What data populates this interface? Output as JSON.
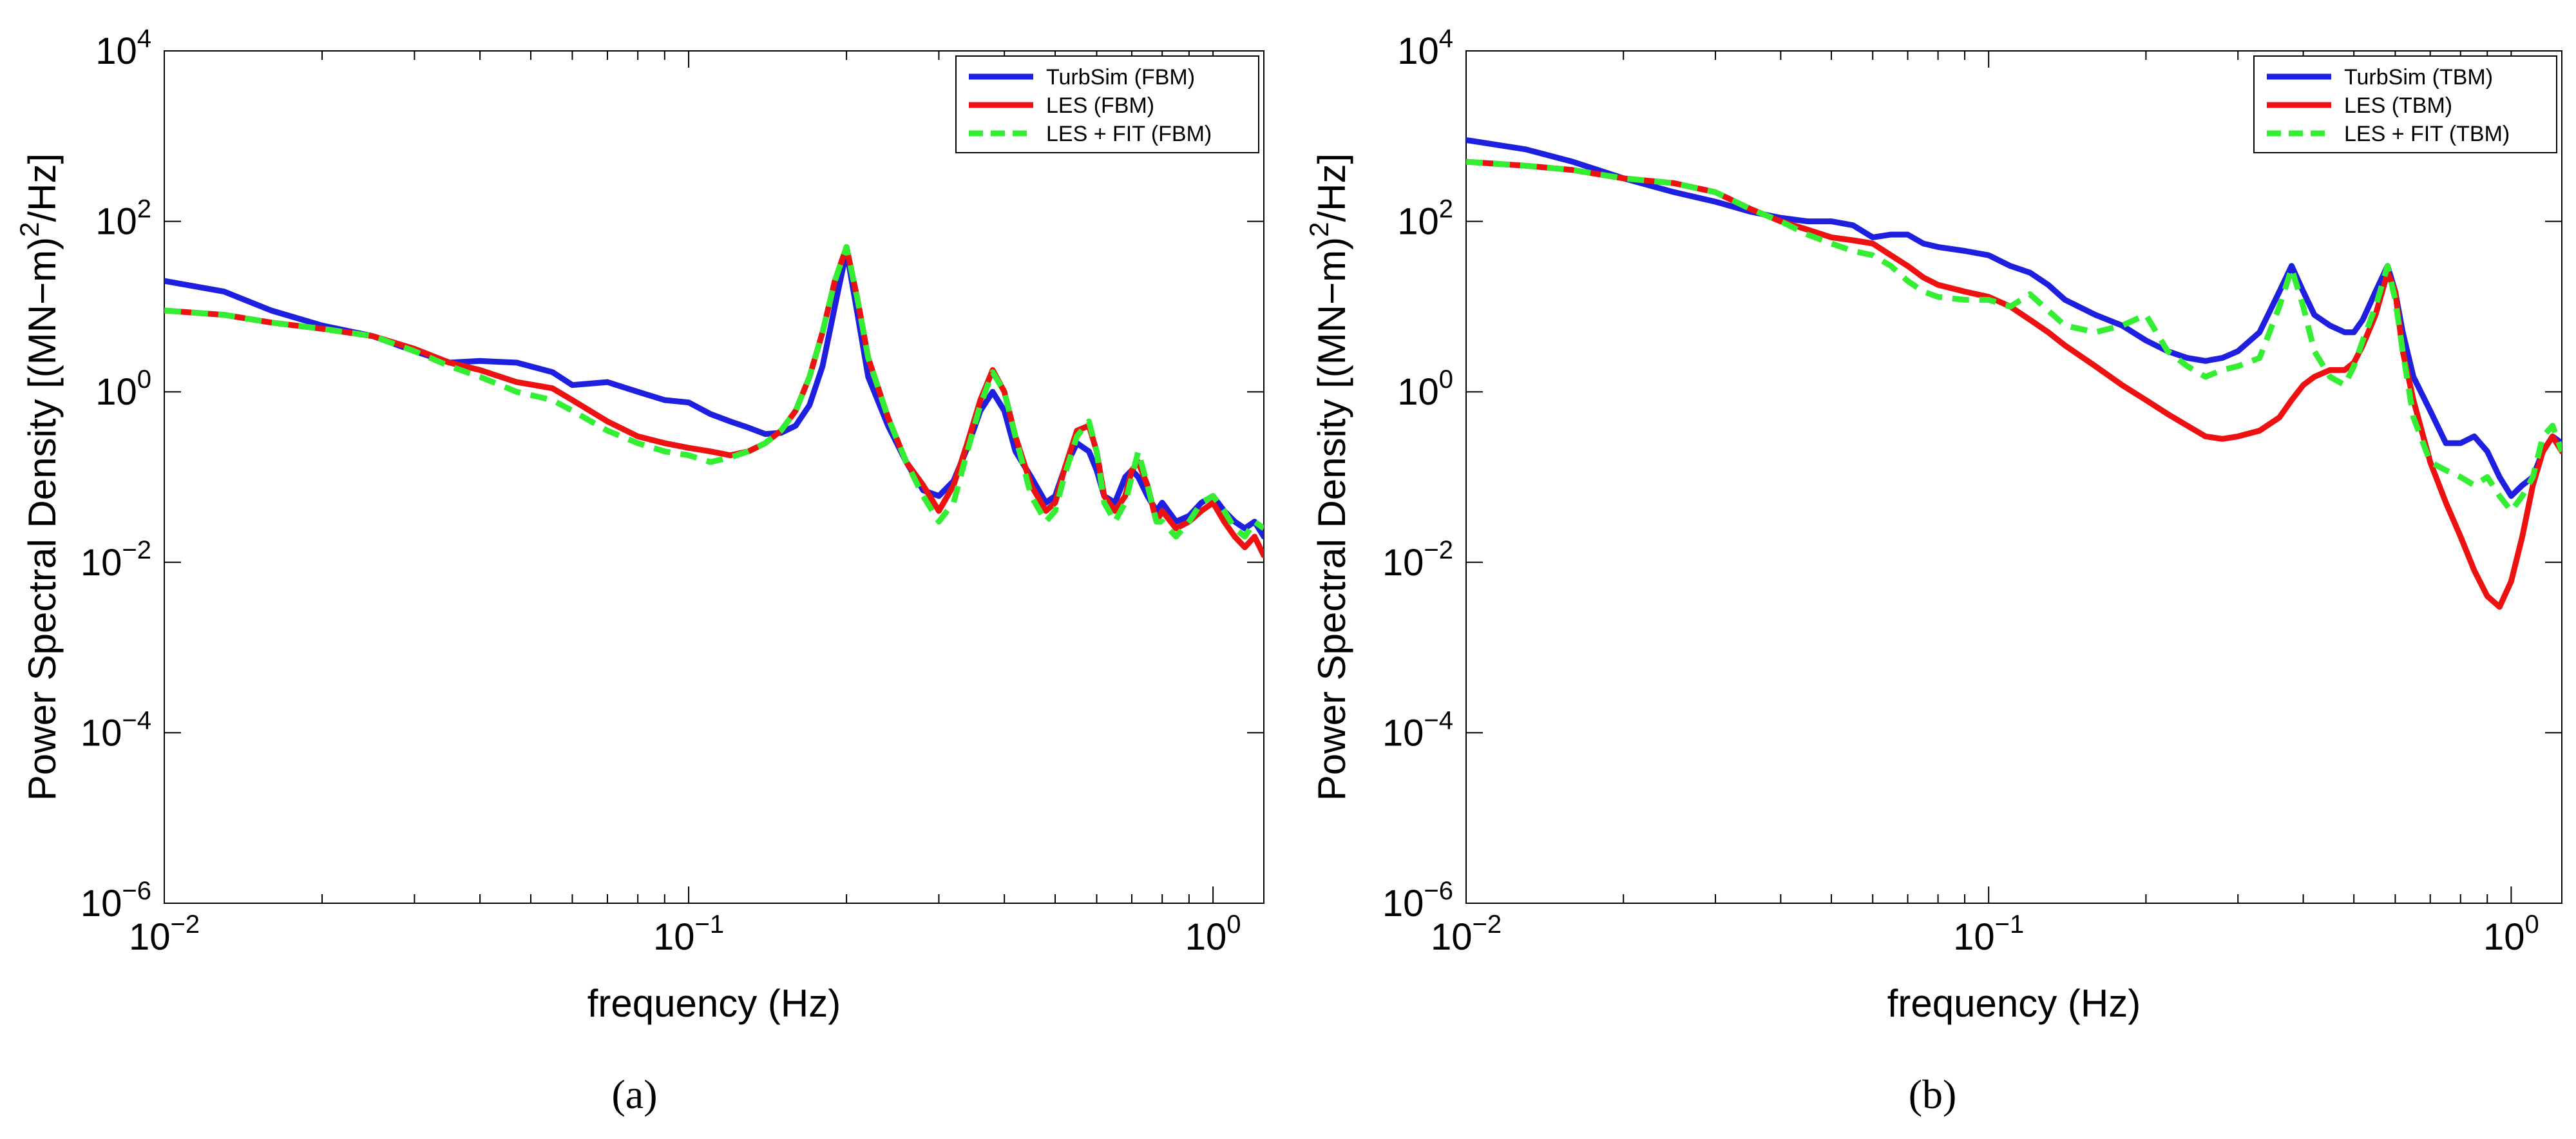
{
  "chart_data": [
    {
      "type": "line",
      "panel": "a",
      "caption": "(a)",
      "xlabel": "frequency (Hz)",
      "ylabel_main": "Power Spectral Density [(MN−m)",
      "ylabel_sup": "2",
      "ylabel_tail": "/Hz]",
      "x_scale": "log",
      "y_scale": "log",
      "xlim": [
        0.01,
        1.25
      ],
      "ylim": [
        1e-06,
        10000.0
      ],
      "x_ticks": [
        {
          "base": "10",
          "exp": "−2",
          "value": 0.01
        },
        {
          "base": "10",
          "exp": "−1",
          "value": 0.1
        },
        {
          "base": "10",
          "exp": "0",
          "value": 1
        }
      ],
      "y_ticks": [
        {
          "base": "10",
          "exp": "−6",
          "value": 1e-06
        },
        {
          "base": "10",
          "exp": "−4",
          "value": 0.0001
        },
        {
          "base": "10",
          "exp": "−2",
          "value": 0.01
        },
        {
          "base": "10",
          "exp": "0",
          "value": 1
        },
        {
          "base": "10",
          "exp": "2",
          "value": 100
        },
        {
          "base": "10",
          "exp": "4",
          "value": 10000
        }
      ],
      "legend_position": "top-right",
      "series": [
        {
          "name": "TurbSim (FBM)",
          "color": "#1f1fe0",
          "dash": "solid",
          "x": [
            0.01,
            0.013,
            0.016,
            0.02,
            0.025,
            0.03,
            0.035,
            0.04,
            0.047,
            0.055,
            0.06,
            0.07,
            0.08,
            0.09,
            0.1,
            0.11,
            0.12,
            0.13,
            0.14,
            0.15,
            0.16,
            0.17,
            0.18,
            0.19,
            0.2,
            0.21,
            0.22,
            0.24,
            0.26,
            0.28,
            0.3,
            0.32,
            0.34,
            0.36,
            0.38,
            0.4,
            0.42,
            0.45,
            0.48,
            0.5,
            0.52,
            0.55,
            0.58,
            0.6,
            0.62,
            0.65,
            0.68,
            0.7,
            0.72,
            0.75,
            0.78,
            0.8,
            0.85,
            0.9,
            0.95,
            1.0,
            1.05,
            1.1,
            1.15,
            1.2,
            1.25
          ],
          "y": [
            20,
            15,
            9,
            6,
            4.5,
            3,
            2.2,
            2.3,
            2.2,
            1.7,
            1.2,
            1.3,
            1.0,
            0.8,
            0.75,
            0.55,
            0.45,
            0.38,
            0.32,
            0.33,
            0.4,
            0.7,
            2.0,
            10,
            45,
            8,
            1.5,
            0.4,
            0.15,
            0.07,
            0.06,
            0.09,
            0.22,
            0.6,
            1.0,
            0.6,
            0.2,
            0.1,
            0.05,
            0.06,
            0.12,
            0.25,
            0.2,
            0.12,
            0.06,
            0.05,
            0.1,
            0.12,
            0.1,
            0.06,
            0.04,
            0.05,
            0.03,
            0.035,
            0.05,
            0.06,
            0.04,
            0.03,
            0.025,
            0.03,
            0.02
          ]
        },
        {
          "name": "LES (FBM)",
          "color": "#ee1111",
          "dash": "solid",
          "x": [
            0.01,
            0.013,
            0.016,
            0.02,
            0.025,
            0.03,
            0.035,
            0.04,
            0.047,
            0.055,
            0.06,
            0.07,
            0.08,
            0.09,
            0.1,
            0.11,
            0.12,
            0.13,
            0.14,
            0.15,
            0.16,
            0.17,
            0.18,
            0.19,
            0.2,
            0.21,
            0.22,
            0.24,
            0.26,
            0.28,
            0.3,
            0.32,
            0.34,
            0.36,
            0.38,
            0.4,
            0.42,
            0.45,
            0.48,
            0.5,
            0.52,
            0.55,
            0.58,
            0.6,
            0.62,
            0.65,
            0.68,
            0.7,
            0.72,
            0.75,
            0.78,
            0.8,
            0.85,
            0.9,
            0.95,
            1.0,
            1.05,
            1.1,
            1.15,
            1.2,
            1.25
          ],
          "y": [
            9,
            8,
            6.5,
            5.5,
            4.5,
            3.2,
            2.2,
            1.8,
            1.3,
            1.1,
            0.8,
            0.45,
            0.3,
            0.25,
            0.22,
            0.2,
            0.18,
            0.2,
            0.25,
            0.35,
            0.6,
            1.5,
            5,
            20,
            50,
            12,
            2.5,
            0.5,
            0.15,
            0.08,
            0.04,
            0.08,
            0.25,
            0.8,
            1.8,
            1.0,
            0.3,
            0.08,
            0.04,
            0.05,
            0.12,
            0.35,
            0.4,
            0.2,
            0.06,
            0.04,
            0.06,
            0.12,
            0.15,
            0.08,
            0.03,
            0.04,
            0.025,
            0.03,
            0.04,
            0.05,
            0.03,
            0.02,
            0.015,
            0.02,
            0.012
          ]
        },
        {
          "name": "LES + FIT (FBM)",
          "color": "#33ee33",
          "dash": "dashed",
          "x": [
            0.01,
            0.013,
            0.016,
            0.02,
            0.025,
            0.03,
            0.035,
            0.04,
            0.047,
            0.055,
            0.06,
            0.07,
            0.08,
            0.09,
            0.1,
            0.11,
            0.12,
            0.13,
            0.14,
            0.15,
            0.16,
            0.17,
            0.18,
            0.19,
            0.2,
            0.21,
            0.22,
            0.24,
            0.26,
            0.28,
            0.3,
            0.32,
            0.34,
            0.36,
            0.38,
            0.4,
            0.42,
            0.45,
            0.48,
            0.5,
            0.52,
            0.55,
            0.58,
            0.6,
            0.62,
            0.65,
            0.68,
            0.7,
            0.72,
            0.75,
            0.78,
            0.8,
            0.85,
            0.9,
            0.95,
            1.0,
            1.05,
            1.1,
            1.15,
            1.2,
            1.25
          ],
          "y": [
            9,
            8,
            6.5,
            5.5,
            4.5,
            3.0,
            2.0,
            1.5,
            1.0,
            0.8,
            0.6,
            0.35,
            0.25,
            0.2,
            0.18,
            0.15,
            0.17,
            0.2,
            0.25,
            0.35,
            0.6,
            1.5,
            5,
            20,
            50,
            12,
            2.5,
            0.5,
            0.15,
            0.06,
            0.03,
            0.05,
            0.2,
            0.7,
            1.7,
            1.0,
            0.3,
            0.06,
            0.03,
            0.04,
            0.1,
            0.3,
            0.45,
            0.2,
            0.05,
            0.03,
            0.05,
            0.1,
            0.2,
            0.08,
            0.03,
            0.03,
            0.02,
            0.03,
            0.05,
            0.06,
            0.04,
            0.025,
            0.02,
            0.03,
            0.025
          ]
        }
      ]
    },
    {
      "type": "line",
      "panel": "b",
      "caption": "(b)",
      "xlabel": "frequency (Hz)",
      "ylabel_main": "Power Spectral Density [(MN−m)",
      "ylabel_sup": "2",
      "ylabel_tail": "/Hz]",
      "x_scale": "log",
      "y_scale": "log",
      "xlim": [
        0.01,
        1.25
      ],
      "ylim": [
        1e-06,
        10000.0
      ],
      "x_ticks": [
        {
          "base": "10",
          "exp": "−2",
          "value": 0.01
        },
        {
          "base": "10",
          "exp": "−1",
          "value": 0.1
        },
        {
          "base": "10",
          "exp": "0",
          "value": 1
        }
      ],
      "y_ticks": [
        {
          "base": "10",
          "exp": "−6",
          "value": 1e-06
        },
        {
          "base": "10",
          "exp": "−4",
          "value": 0.0001
        },
        {
          "base": "10",
          "exp": "−2",
          "value": 0.01
        },
        {
          "base": "10",
          "exp": "0",
          "value": 1
        },
        {
          "base": "10",
          "exp": "2",
          "value": 100
        },
        {
          "base": "10",
          "exp": "4",
          "value": 10000
        }
      ],
      "legend_position": "top-right",
      "series": [
        {
          "name": "TurbSim (TBM)",
          "color": "#1f1fe0",
          "dash": "solid",
          "x": [
            0.01,
            0.013,
            0.016,
            0.02,
            0.025,
            0.03,
            0.035,
            0.04,
            0.045,
            0.05,
            0.055,
            0.06,
            0.065,
            0.07,
            0.075,
            0.08,
            0.09,
            0.1,
            0.11,
            0.12,
            0.13,
            0.14,
            0.16,
            0.18,
            0.2,
            0.22,
            0.24,
            0.26,
            0.28,
            0.3,
            0.33,
            0.36,
            0.38,
            0.4,
            0.42,
            0.45,
            0.48,
            0.5,
            0.52,
            0.55,
            0.58,
            0.6,
            0.62,
            0.65,
            0.7,
            0.75,
            0.8,
            0.85,
            0.9,
            0.95,
            1.0,
            1.05,
            1.1,
            1.15,
            1.2,
            1.25
          ],
          "y": [
            900,
            700,
            500,
            320,
            220,
            170,
            130,
            110,
            100,
            100,
            90,
            65,
            70,
            70,
            55,
            50,
            45,
            40,
            30,
            25,
            18,
            12,
            8,
            6,
            4,
            3,
            2.5,
            2.3,
            2.5,
            3,
            5,
            15,
            30,
            15,
            8,
            6,
            5,
            5,
            7,
            15,
            30,
            15,
            5,
            1.5,
            0.6,
            0.25,
            0.25,
            0.3,
            0.2,
            0.1,
            0.06,
            0.08,
            0.1,
            0.2,
            0.3,
            0.25
          ]
        },
        {
          "name": "LES (TBM)",
          "color": "#ee1111",
          "dash": "solid",
          "x": [
            0.01,
            0.013,
            0.016,
            0.02,
            0.025,
            0.03,
            0.035,
            0.04,
            0.045,
            0.05,
            0.055,
            0.06,
            0.065,
            0.07,
            0.075,
            0.08,
            0.09,
            0.1,
            0.11,
            0.12,
            0.13,
            0.14,
            0.16,
            0.18,
            0.2,
            0.22,
            0.24,
            0.26,
            0.28,
            0.3,
            0.33,
            0.36,
            0.38,
            0.4,
            0.42,
            0.45,
            0.48,
            0.5,
            0.52,
            0.55,
            0.58,
            0.6,
            0.62,
            0.65,
            0.7,
            0.75,
            0.8,
            0.85,
            0.9,
            0.95,
            1.0,
            1.05,
            1.1,
            1.15,
            1.2,
            1.25
          ],
          "y": [
            500,
            450,
            400,
            320,
            280,
            220,
            140,
            100,
            80,
            65,
            60,
            55,
            40,
            30,
            22,
            18,
            15,
            13,
            10,
            7,
            5,
            3.5,
            2,
            1.2,
            0.8,
            0.55,
            0.4,
            0.3,
            0.28,
            0.3,
            0.35,
            0.5,
            0.8,
            1.2,
            1.5,
            1.8,
            1.8,
            2.2,
            3.5,
            8,
            25,
            15,
            3,
            0.8,
            0.15,
            0.05,
            0.02,
            0.008,
            0.004,
            0.003,
            0.006,
            0.02,
            0.08,
            0.2,
            0.3,
            0.2
          ]
        },
        {
          "name": "LES + FIT (TBM)",
          "color": "#33ee33",
          "dash": "dashed",
          "x": [
            0.01,
            0.013,
            0.016,
            0.02,
            0.025,
            0.03,
            0.035,
            0.04,
            0.045,
            0.05,
            0.055,
            0.06,
            0.065,
            0.07,
            0.075,
            0.08,
            0.09,
            0.1,
            0.11,
            0.12,
            0.13,
            0.14,
            0.16,
            0.18,
            0.2,
            0.22,
            0.24,
            0.26,
            0.28,
            0.3,
            0.33,
            0.36,
            0.38,
            0.4,
            0.42,
            0.45,
            0.48,
            0.5,
            0.52,
            0.55,
            0.58,
            0.6,
            0.62,
            0.65,
            0.7,
            0.75,
            0.8,
            0.85,
            0.9,
            0.95,
            1.0,
            1.05,
            1.1,
            1.15,
            1.2,
            1.25
          ],
          "y": [
            500,
            450,
            400,
            320,
            280,
            220,
            140,
            100,
            70,
            55,
            45,
            40,
            30,
            20,
            15,
            13,
            12,
            12,
            10,
            14,
            9,
            6,
            5,
            6,
            8,
            3,
            2,
            1.5,
            1.8,
            2,
            2.5,
            10,
            28,
            10,
            3,
            1.5,
            1.2,
            2,
            4,
            10,
            30,
            12,
            3,
            0.5,
            0.15,
            0.12,
            0.1,
            0.08,
            0.1,
            0.06,
            0.04,
            0.06,
            0.1,
            0.3,
            0.4,
            0.2
          ]
        }
      ]
    }
  ]
}
